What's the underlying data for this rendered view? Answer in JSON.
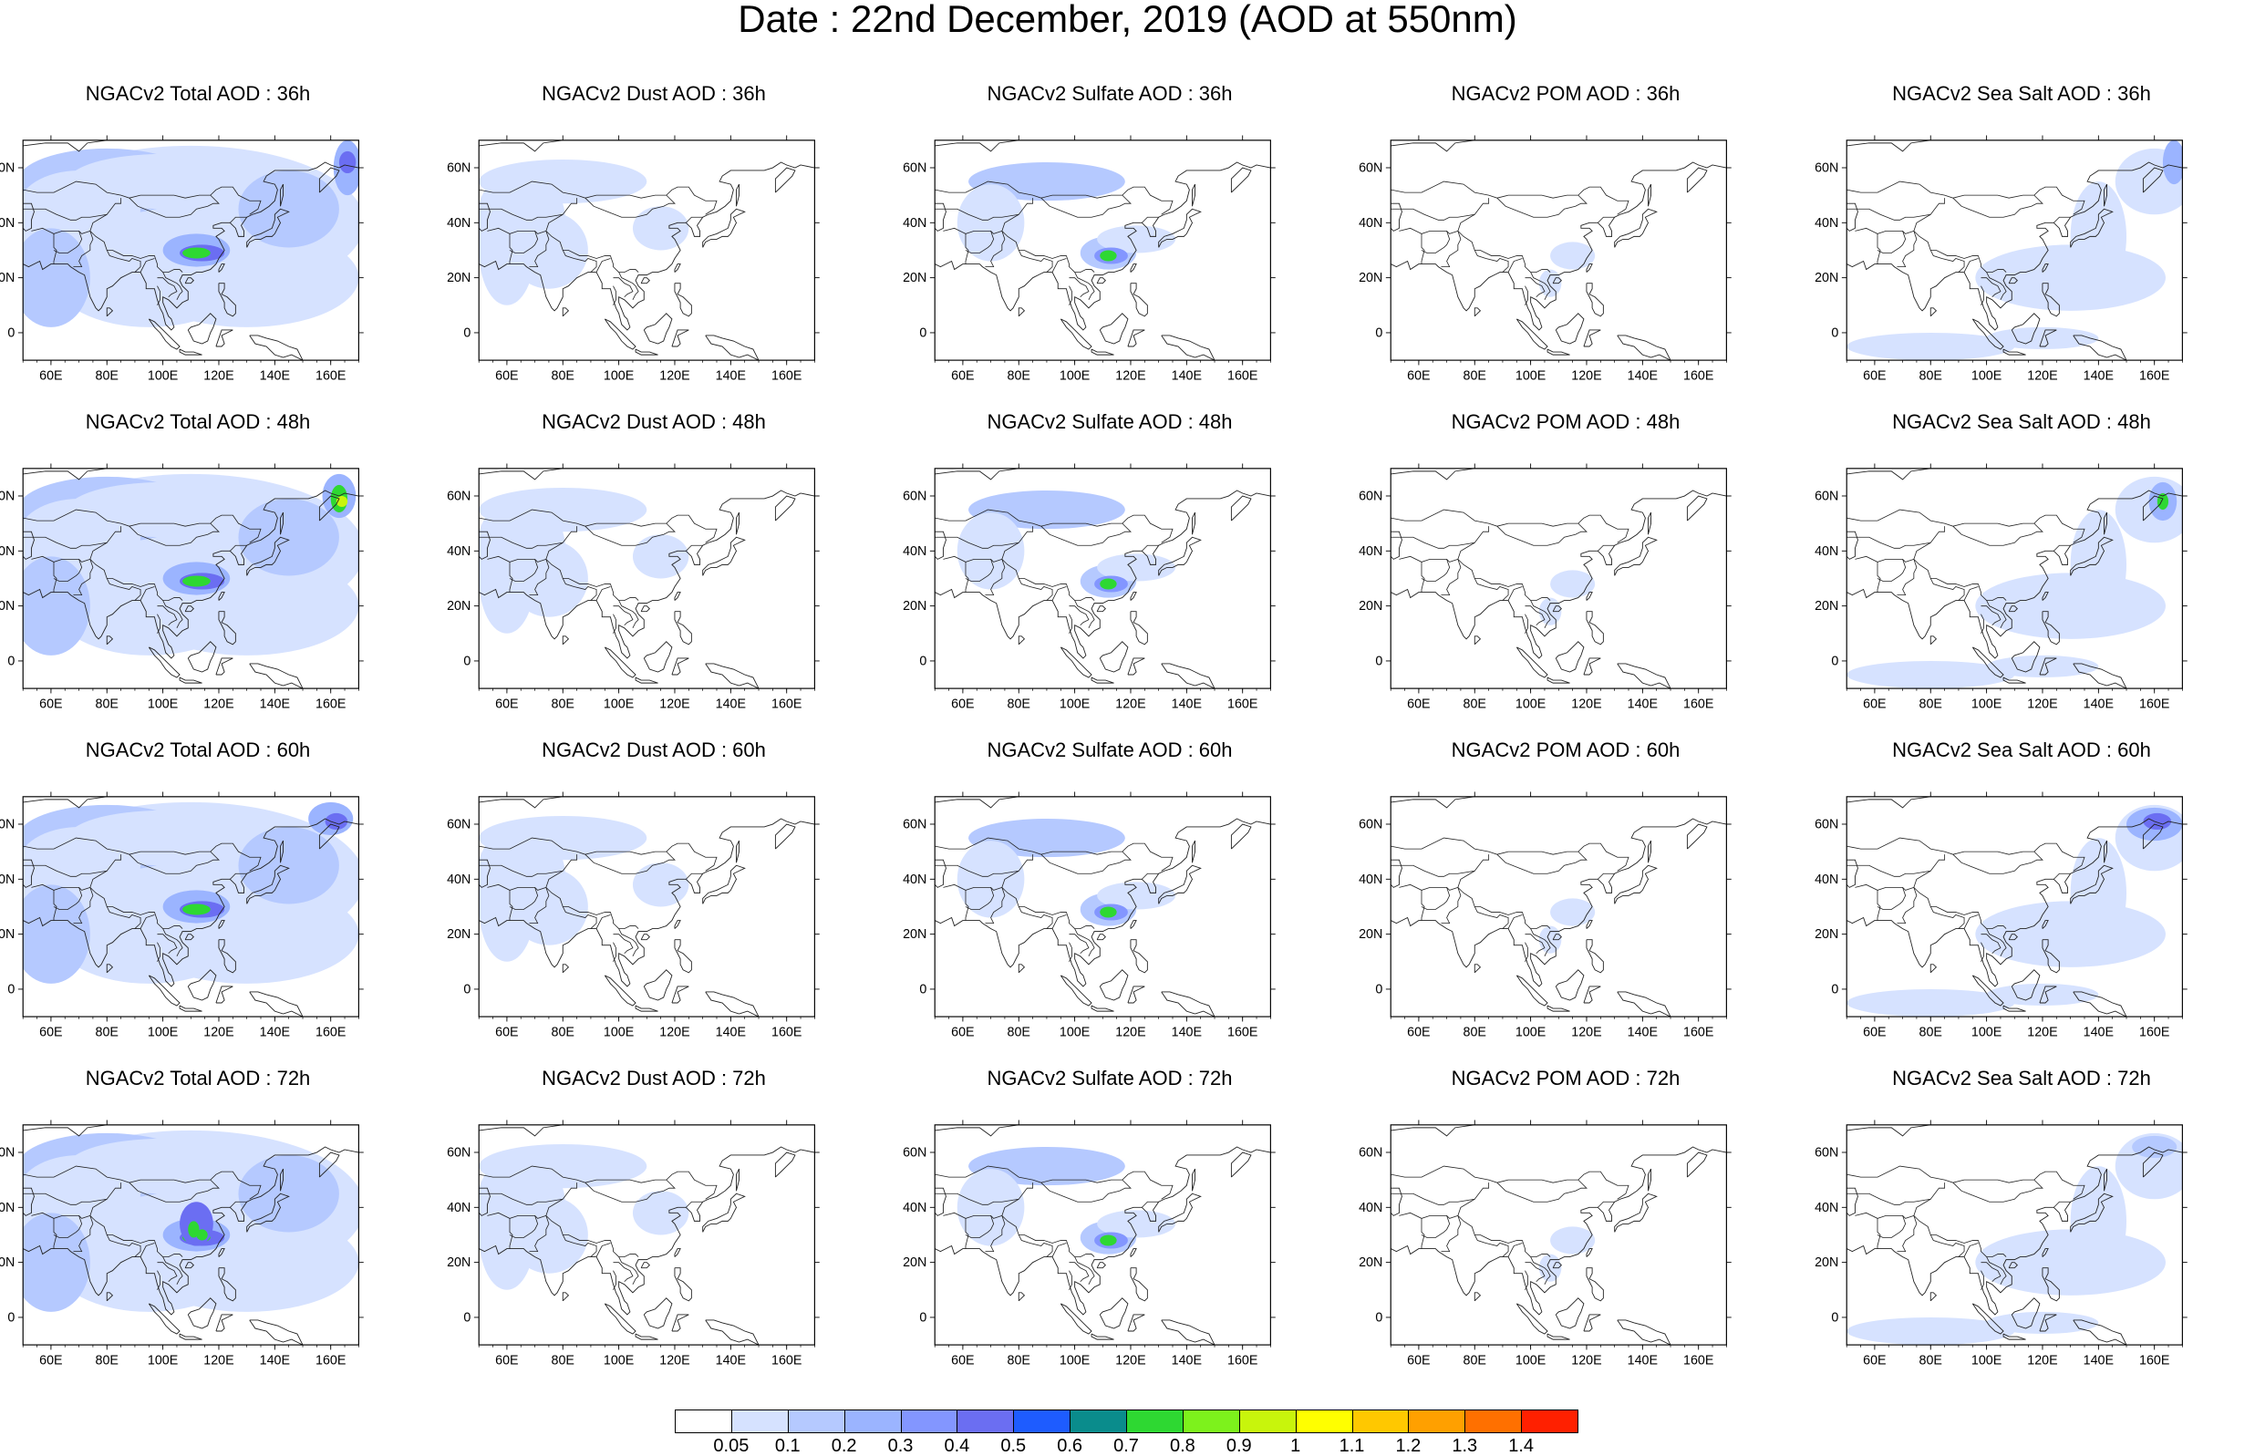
{
  "figure": {
    "title": "Date : 22nd December, 2019 (AOD at 550nm)"
  },
  "axes": {
    "lon_ticks": [
      "60E",
      "80E",
      "100E",
      "120E",
      "140E",
      "160E"
    ],
    "lat_ticks": [
      "60N",
      "40N",
      "20N",
      "0"
    ],
    "lon_range": [
      50,
      170
    ],
    "lat_range": [
      -10,
      70
    ]
  },
  "panels": [
    [
      {
        "title": "NGACv2 Total AOD : 36h",
        "species": "total",
        "forecast_hour": 36
      },
      {
        "title": "NGACv2 Dust AOD : 36h",
        "species": "dust",
        "forecast_hour": 36
      },
      {
        "title": "NGACv2 Sulfate AOD : 36h",
        "species": "sulfate",
        "forecast_hour": 36
      },
      {
        "title": "NGACv2 POM AOD : 36h",
        "species": "pom",
        "forecast_hour": 36
      },
      {
        "title": "NGACv2 Sea Salt AOD : 36h",
        "species": "seasalt",
        "forecast_hour": 36
      }
    ],
    [
      {
        "title": "NGACv2 Total AOD : 48h",
        "species": "total",
        "forecast_hour": 48
      },
      {
        "title": "NGACv2 Dust AOD : 48h",
        "species": "dust",
        "forecast_hour": 48
      },
      {
        "title": "NGACv2 Sulfate AOD : 48h",
        "species": "sulfate",
        "forecast_hour": 48
      },
      {
        "title": "NGACv2 POM AOD : 48h",
        "species": "pom",
        "forecast_hour": 48
      },
      {
        "title": "NGACv2 Sea Salt AOD : 48h",
        "species": "seasalt",
        "forecast_hour": 48
      }
    ],
    [
      {
        "title": "NGACv2 Total AOD : 60h",
        "species": "total",
        "forecast_hour": 60
      },
      {
        "title": "NGACv2 Dust AOD : 60h",
        "species": "dust",
        "forecast_hour": 60
      },
      {
        "title": "NGACv2 Sulfate AOD : 60h",
        "species": "sulfate",
        "forecast_hour": 60
      },
      {
        "title": "NGACv2 POM AOD : 60h",
        "species": "pom",
        "forecast_hour": 60
      },
      {
        "title": "NGACv2 Sea Salt AOD : 60h",
        "species": "seasalt",
        "forecast_hour": 60
      }
    ],
    [
      {
        "title": "NGACv2 Total AOD : 72h",
        "species": "total",
        "forecast_hour": 72
      },
      {
        "title": "NGACv2 Dust AOD : 72h",
        "species": "dust",
        "forecast_hour": 72
      },
      {
        "title": "NGACv2 Sulfate AOD : 72h",
        "species": "sulfate",
        "forecast_hour": 72
      },
      {
        "title": "NGACv2 POM AOD : 72h",
        "species": "pom",
        "forecast_hour": 72
      },
      {
        "title": "NGACv2 Sea Salt  AOD : 72h",
        "species": "seasalt",
        "forecast_hour": 72
      }
    ]
  ],
  "colorbar": {
    "labels": [
      "0.05",
      "0.1",
      "0.2",
      "0.3",
      "0.4",
      "0.5",
      "0.6",
      "0.7",
      "0.8",
      "0.9",
      "1",
      "1.1",
      "1.2",
      "1.3",
      "1.4"
    ],
    "colors": [
      "#ffffff",
      "#d6e2ff",
      "#b5c9ff",
      "#9bb4ff",
      "#8396ff",
      "#6b6ef2",
      "#1e5cff",
      "#0a8c8c",
      "#2ed832",
      "#7df21c",
      "#c8f50c",
      "#ffff00",
      "#ffc800",
      "#ffa000",
      "#ff7000",
      "#ff2000"
    ]
  }
}
